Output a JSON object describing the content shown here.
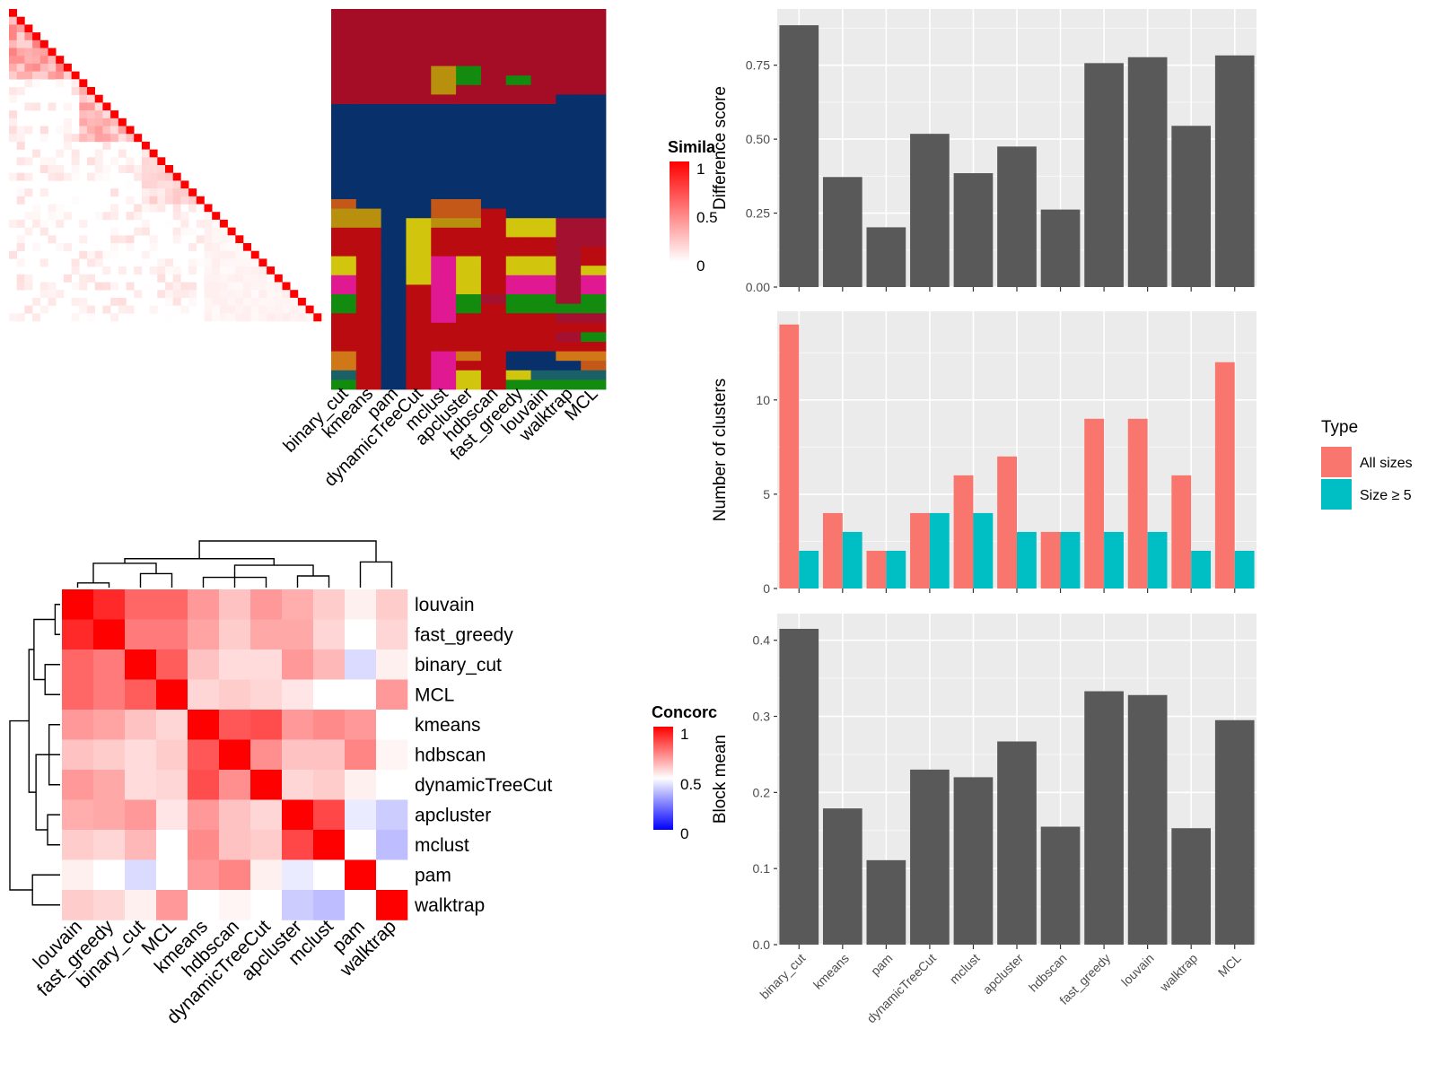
{
  "methods": [
    "binary_cut",
    "kmeans",
    "pam",
    "dynamicTreeCut",
    "mclust",
    "apcluster",
    "hdbscan",
    "fast_greedy",
    "louvain",
    "walktrap",
    "MCL"
  ],
  "chart_data": [
    {
      "id": "similarity-heatmap",
      "type": "heatmap",
      "legend_title": "Similarity",
      "legend_title_visible": "Simila",
      "legend_ticks": [
        1,
        0.5,
        0
      ],
      "n": 40,
      "colors": {
        "low": "#FFFFFF",
        "high": "#FF0000"
      },
      "blocks": [
        {
          "start": 0,
          "end": 9,
          "value": 0.35
        },
        {
          "start": 9,
          "end": 17,
          "value": 0.28
        },
        {
          "start": 17,
          "end": 25,
          "value": 0.15
        },
        {
          "start": 25,
          "end": 40,
          "value": 0.05
        }
      ],
      "diagonal": 1
    },
    {
      "id": "cluster-assignment-heatmap",
      "type": "heatmap",
      "columns": [
        "binary_cut",
        "kmeans",
        "pam",
        "dynamicTreeCut",
        "mclust",
        "apcluster",
        "hdbscan",
        "fast_greedy",
        "louvain",
        "walktrap",
        "MCL"
      ],
      "palette": {
        "R": "#A50D26",
        "B": "#08306B",
        "O": "#C35818",
        "G": "#B8900E",
        "Y": "#D1C50D",
        "E": "#B90B10",
        "P": "#E01993",
        "N": "#138B0E",
        "L": "#3B9012",
        "T": "#1A6068",
        "C": "#D07818",
        "M": "#A31030"
      },
      "rows": [
        "RRRRRRRRRRR",
        "RRRRRRRRRRR",
        "RRRRRRRRRRR",
        "RRRRRRRRRRR",
        "RRRRRRRRRRR",
        "RRRRRRRRRRR",
        "RRRRGNRRRRR",
        "RRRRGNRNRRR",
        "RRRRGRRRRRR",
        "RRRRRRRRRBB",
        "BBBBBBBBBBB",
        "BBBBBBBBBBB",
        "BBBBBBBBBBB",
        "BBBBBBBBBBB",
        "BBBBBBBBBBB",
        "BBBBBBBBBBB",
        "BBBBBBBBBBB",
        "BBBBBBBBBBB",
        "BBBBBBBBBBB",
        "BBBBBBBBBBB",
        "OBBBOOBBBBB",
        "GGBBOOEBBBB",
        "GGBYGGEYYMM",
        "EEBYEEEYYMM",
        "EEBYEEEEEMM",
        "EEBYEEEEEME",
        "YEBYPYEYYME",
        "YEBYPYEYYMY",
        "PEBYPYEPPMP",
        "PEBEPYEPPMP",
        "NEBEPNMNNMN",
        "NEBEPNENNNN",
        "EEBEPEEEEMM",
        "EEBEEEEEEEE",
        "EEBEEEEEEMN",
        "EEBEEEEEEEE",
        "CEBEPCEBBCC",
        "CEBEPEEBBBO",
        "TEBEPYEYTTT",
        "NEBEPYENNNN"
      ]
    },
    {
      "id": "difference-score",
      "type": "bar",
      "categories": [
        "binary_cut",
        "kmeans",
        "pam",
        "dynamicTreeCut",
        "mclust",
        "apcluster",
        "hdbscan",
        "fast_greedy",
        "louvain",
        "walktrap",
        "MCL"
      ],
      "values": [
        0.885,
        0.372,
        0.202,
        0.518,
        0.385,
        0.475,
        0.262,
        0.757,
        0.777,
        0.545,
        0.783
      ],
      "ylabel": "Difference score",
      "ylim": [
        0,
        0.94
      ],
      "yticks": [
        0,
        0.25,
        0.5,
        0.75
      ],
      "ytick_labels": [
        "0.00",
        "0.25",
        "0.50",
        "0.75"
      ],
      "color": "#595959"
    },
    {
      "id": "number-of-clusters",
      "type": "bar",
      "categories": [
        "binary_cut",
        "kmeans",
        "pam",
        "dynamicTreeCut",
        "mclust",
        "apcluster",
        "hdbscan",
        "fast_greedy",
        "louvain",
        "walktrap",
        "MCL"
      ],
      "series": [
        {
          "name": "All sizes",
          "color": "#F8766D",
          "values": [
            14,
            4,
            2,
            4,
            6,
            7,
            3,
            9,
            9,
            6,
            12
          ]
        },
        {
          "name": "Size ≥ 5",
          "color": "#00BFC4",
          "values": [
            2,
            3,
            2,
            4,
            4,
            3,
            3,
            3,
            3,
            2,
            2
          ]
        }
      ],
      "ylabel": "Number of clusters",
      "ylim": [
        0,
        14.7
      ],
      "yticks": [
        0,
        5,
        10
      ],
      "ytick_labels": [
        "0",
        "5",
        "10"
      ],
      "legend": {
        "title": "Type",
        "placement": "right"
      }
    },
    {
      "id": "block-mean",
      "type": "bar",
      "categories": [
        "binary_cut",
        "kmeans",
        "pam",
        "dynamicTreeCut",
        "mclust",
        "apcluster",
        "hdbscan",
        "fast_greedy",
        "louvain",
        "walktrap",
        "MCL"
      ],
      "values": [
        0.415,
        0.179,
        0.111,
        0.23,
        0.22,
        0.267,
        0.155,
        0.333,
        0.328,
        0.153,
        0.295
      ],
      "ylabel": "Block mean",
      "ylim": [
        0,
        0.435
      ],
      "yticks": [
        0,
        0.1,
        0.2,
        0.3,
        0.4
      ],
      "ytick_labels": [
        "0.0",
        "0.1",
        "0.2",
        "0.3",
        "0.4"
      ],
      "color": "#595959"
    },
    {
      "id": "concordance-heatmap",
      "type": "heatmap",
      "legend_title": "Concordance",
      "legend_title_visible": "Concorc",
      "legend_ticks": [
        1,
        0.5,
        0
      ],
      "order": [
        "louvain",
        "fast_greedy",
        "binary_cut",
        "MCL",
        "kmeans",
        "hdbscan",
        "dynamicTreeCut",
        "apcluster",
        "mclust",
        "pam",
        "walktrap"
      ],
      "matrix": [
        [
          1.0,
          0.92,
          0.8,
          0.8,
          0.7,
          0.62,
          0.7,
          0.66,
          0.6,
          0.53,
          0.6
        ],
        [
          0.92,
          1.0,
          0.76,
          0.76,
          0.68,
          0.6,
          0.67,
          0.67,
          0.58,
          0.5,
          0.58
        ],
        [
          0.8,
          0.76,
          1.0,
          0.82,
          0.62,
          0.57,
          0.57,
          0.7,
          0.64,
          0.43,
          0.53
        ],
        [
          0.8,
          0.76,
          0.82,
          1.0,
          0.58,
          0.6,
          0.58,
          0.55,
          0.5,
          0.5,
          0.7
        ],
        [
          0.7,
          0.68,
          0.62,
          0.58,
          1.0,
          0.83,
          0.85,
          0.7,
          0.73,
          0.7,
          0.5
        ],
        [
          0.62,
          0.6,
          0.57,
          0.6,
          0.83,
          1.0,
          0.72,
          0.62,
          0.62,
          0.74,
          0.52
        ],
        [
          0.7,
          0.67,
          0.57,
          0.58,
          0.85,
          0.72,
          1.0,
          0.58,
          0.6,
          0.53,
          0.5
        ],
        [
          0.66,
          0.67,
          0.7,
          0.55,
          0.7,
          0.62,
          0.58,
          1.0,
          0.86,
          0.46,
          0.4
        ],
        [
          0.6,
          0.58,
          0.64,
          0.5,
          0.73,
          0.62,
          0.6,
          0.86,
          1.0,
          0.5,
          0.37
        ],
        [
          0.53,
          0.5,
          0.43,
          0.5,
          0.7,
          0.74,
          0.53,
          0.46,
          0.5,
          1.0,
          0.5
        ],
        [
          0.6,
          0.58,
          0.53,
          0.7,
          0.5,
          0.52,
          0.5,
          0.4,
          0.37,
          0.5,
          1.0
        ]
      ],
      "colors": {
        "low": "#0000FF",
        "mid": "#FFFFFF",
        "high": "#FF0000"
      },
      "row_dendrogram": [
        [
          6,
          7,
          0.2
        ],
        [
          3,
          4,
          0.46
        ],
        [
          11,
          2,
          0.78
        ],
        [
          13,
          5,
          0.82
        ],
        [
          4,
          3,
          0.85
        ],
        [
          8,
          9,
          0.25
        ],
        [
          5,
          6,
          0.3
        ],
        [
          1,
          12,
          0.78
        ],
        [
          0,
          1,
          0.1
        ],
        [
          2,
          10,
          0.56
        ],
        [
          17,
          18,
          1.0
        ]
      ],
      "col_dendrogram": [
        [
          6,
          7,
          0.2
        ],
        [
          3,
          4,
          0.46
        ],
        [
          11,
          2,
          0.78
        ],
        [
          13,
          5,
          0.82
        ],
        [
          4,
          3,
          0.85
        ],
        [
          8,
          9,
          0.25
        ],
        [
          5,
          6,
          0.3
        ],
        [
          1,
          12,
          0.78
        ],
        [
          0,
          1,
          0.1
        ],
        [
          2,
          10,
          0.56
        ],
        [
          17,
          18,
          1.0
        ]
      ]
    }
  ]
}
